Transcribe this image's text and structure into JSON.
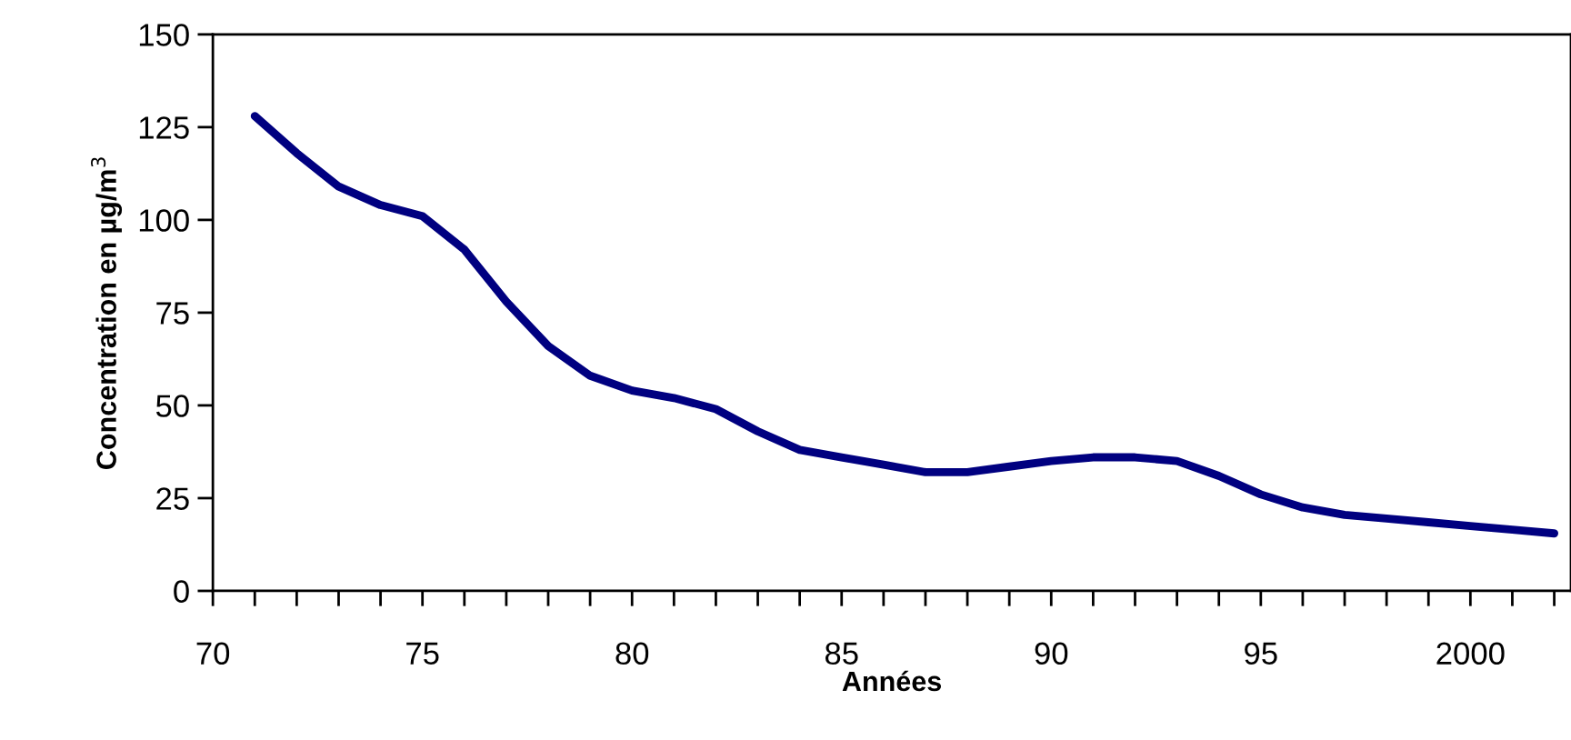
{
  "chart_data": {
    "type": "line",
    "xlabel": "Années",
    "ylabel": "Concentration en µg/m$^{3}$",
    "x": [
      1971,
      1972,
      1973,
      1974,
      1975,
      1976,
      1977,
      1978,
      1979,
      1980,
      1981,
      1982,
      1983,
      1984,
      1985,
      1986,
      1987,
      1988,
      1989,
      1990,
      1991,
      1992,
      1993,
      1994,
      1995,
      1996,
      1997,
      1998,
      1999,
      2000,
      2001,
      2002
    ],
    "series": [
      {
        "color": "#000080",
        "values": [
          128,
          118,
          109,
          104,
          101,
          92,
          78,
          66,
          58,
          54,
          52,
          49,
          43,
          38,
          36,
          34,
          32,
          32,
          33.5,
          35,
          36,
          36,
          35,
          31,
          26,
          22.5,
          20.5,
          19.5,
          18.5,
          17.5,
          16.5,
          15.5
        ]
      }
    ],
    "xlim": [
      1970,
      2002.4
    ],
    "ylim": [
      0,
      150
    ],
    "xticks": [
      {
        "value": 1970,
        "label": "70"
      },
      {
        "value": 1975,
        "label": "75"
      },
      {
        "value": 1980,
        "label": "80"
      },
      {
        "value": 1985,
        "label": "85"
      },
      {
        "value": 1990,
        "label": "90"
      },
      {
        "value": 1995,
        "label": "95"
      },
      {
        "value": 2000,
        "label": "2000"
      }
    ],
    "yticks": [
      0,
      25,
      50,
      75,
      100,
      125,
      150
    ],
    "grid": false,
    "legend": false,
    "marker": "none",
    "line_style": "solid"
  }
}
